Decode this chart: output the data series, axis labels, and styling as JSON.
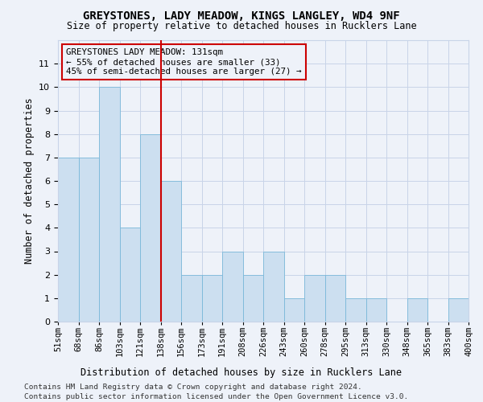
{
  "title": "GREYSTONES, LADY MEADOW, KINGS LANGLEY, WD4 9NF",
  "subtitle": "Size of property relative to detached houses in Rucklers Lane",
  "xlabel": "Distribution of detached houses by size in Rucklers Lane",
  "ylabel": "Number of detached properties",
  "footer1": "Contains HM Land Registry data © Crown copyright and database right 2024.",
  "footer2": "Contains public sector information licensed under the Open Government Licence v3.0.",
  "x_labels": [
    "51sqm",
    "68sqm",
    "86sqm",
    "103sqm",
    "121sqm",
    "138sqm",
    "156sqm",
    "173sqm",
    "191sqm",
    "208sqm",
    "226sqm",
    "243sqm",
    "260sqm",
    "278sqm",
    "295sqm",
    "313sqm",
    "330sqm",
    "348sqm",
    "365sqm",
    "383sqm",
    "400sqm"
  ],
  "bar_heights": [
    7,
    7,
    10,
    4,
    8,
    6,
    2,
    2,
    3,
    2,
    3,
    1,
    2,
    2,
    1,
    1,
    0,
    1,
    0,
    1
  ],
  "bar_color": "#ccdff0",
  "bar_edge_color": "#7ab8d9",
  "grid_color": "#c8d4e8",
  "annotation_box_color": "#cc0000",
  "vline_color": "#cc0000",
  "vline_x": 4.5,
  "annotation_text_line1": "GREYSTONES LADY MEADOW: 131sqm",
  "annotation_text_line2": "← 55% of detached houses are smaller (33)",
  "annotation_text_line3": "45% of semi-detached houses are larger (27) →",
  "ylim_max": 12,
  "background_color": "#eef2f9"
}
